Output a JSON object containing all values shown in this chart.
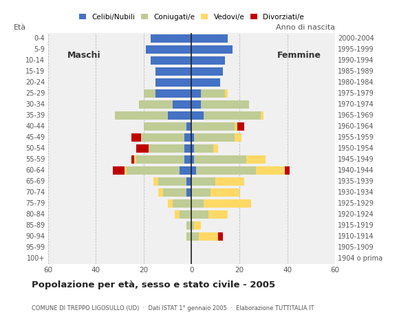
{
  "age_groups": [
    "100+",
    "95-99",
    "90-94",
    "85-89",
    "80-84",
    "75-79",
    "70-74",
    "65-69",
    "60-64",
    "55-59",
    "50-54",
    "45-49",
    "40-44",
    "35-39",
    "30-34",
    "25-29",
    "20-24",
    "15-19",
    "10-14",
    "5-9",
    "0-4"
  ],
  "birth_years": [
    "1904 o prima",
    "1905-1909",
    "1910-1914",
    "1915-1919",
    "1920-1924",
    "1925-1929",
    "1930-1934",
    "1935-1939",
    "1940-1944",
    "1945-1949",
    "1950-1954",
    "1955-1959",
    "1960-1964",
    "1965-1969",
    "1970-1974",
    "1975-1979",
    "1980-1984",
    "1985-1989",
    "1990-1994",
    "1995-1999",
    "2000-2004"
  ],
  "males": {
    "celibe": [
      0,
      0,
      0,
      0,
      0,
      0,
      2,
      2,
      5,
      3,
      3,
      3,
      2,
      10,
      8,
      15,
      15,
      15,
      17,
      19,
      17
    ],
    "coniugato": [
      0,
      0,
      2,
      2,
      5,
      8,
      10,
      12,
      22,
      20,
      15,
      18,
      18,
      22,
      14,
      5,
      0,
      0,
      0,
      0,
      0
    ],
    "vedovo": [
      0,
      0,
      0,
      0,
      2,
      2,
      2,
      2,
      1,
      1,
      0,
      0,
      0,
      0,
      0,
      0,
      0,
      0,
      0,
      0,
      0
    ],
    "divorziato": [
      0,
      0,
      0,
      0,
      0,
      0,
      0,
      0,
      5,
      1,
      5,
      4,
      0,
      0,
      0,
      0,
      0,
      0,
      0,
      0,
      0
    ]
  },
  "females": {
    "nubile": [
      0,
      0,
      0,
      0,
      0,
      0,
      0,
      0,
      2,
      1,
      1,
      1,
      0,
      5,
      4,
      4,
      12,
      13,
      14,
      17,
      15
    ],
    "coniugata": [
      0,
      0,
      3,
      1,
      7,
      5,
      8,
      10,
      25,
      22,
      8,
      17,
      18,
      24,
      20,
      10,
      0,
      0,
      0,
      0,
      0
    ],
    "vedova": [
      0,
      0,
      8,
      3,
      8,
      20,
      12,
      12,
      12,
      8,
      2,
      3,
      1,
      1,
      0,
      1,
      0,
      0,
      0,
      0,
      0
    ],
    "divorziata": [
      0,
      0,
      2,
      0,
      0,
      0,
      0,
      0,
      2,
      0,
      0,
      0,
      3,
      0,
      0,
      0,
      0,
      0,
      0,
      0,
      0
    ]
  },
  "colors": {
    "celibe_nubile": "#4472C4",
    "coniugato_a": "#BFCC96",
    "vedovo_a": "#FFD966",
    "divorziato_a": "#C00000"
  },
  "xlim": 60,
  "title": "Popolazione per età, sesso e stato civile - 2005",
  "subtitle": "COMUNE DI TREPPO LIGOSULLO (UD)  ·  Dati ISTAT 1° gennaio 2005  ·  Elaborazione TUTTITALIA.IT",
  "legend_labels": [
    "Celibi/Nubili",
    "Coniugati/e",
    "Vedovi/e",
    "Divorziati/e"
  ],
  "bar_height": 0.8,
  "bg_color": "#f0f0f0"
}
